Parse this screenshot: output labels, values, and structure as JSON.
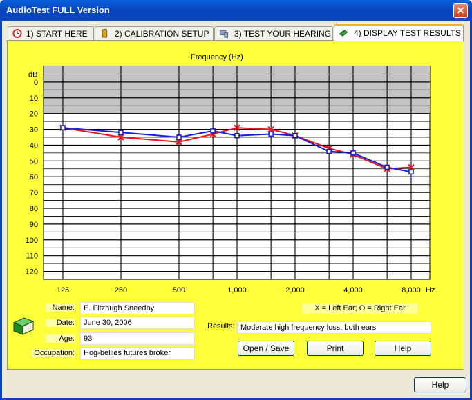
{
  "window": {
    "title": "AudioTest FULL Version",
    "close_label": "✕"
  },
  "tabs": [
    {
      "label": "1) START HERE",
      "icon": "clock-icon"
    },
    {
      "label": "2) CALIBRATION SETUP",
      "icon": "battery-icon"
    },
    {
      "label": "3) TEST YOUR HEARING",
      "icon": "computer-icon"
    },
    {
      "label": "4) DISPLAY TEST RESULTS",
      "icon": "book-icon",
      "active": true
    }
  ],
  "chart_data": {
    "type": "line",
    "title": "Frequency (Hz)",
    "y_unit_label": "dB",
    "x_unit_label": "Hz",
    "x_tick_labels": [
      "125",
      "250",
      "500",
      "1,000",
      "2,000",
      "4,000",
      "8,000"
    ],
    "x_ticks_hz": [
      125,
      250,
      500,
      1000,
      2000,
      4000,
      8000
    ],
    "gridline_frequencies_hz": [
      125,
      250,
      500,
      750,
      1000,
      1500,
      2000,
      3000,
      4000,
      6000,
      8000
    ],
    "y_tick_labels": [
      "0",
      "10",
      "20",
      "30",
      "40",
      "50",
      "60",
      "70",
      "80",
      "90",
      "100",
      "110",
      "120"
    ],
    "ylim": [
      -10,
      125
    ],
    "y_inverted": true,
    "shaded_range_db": [
      -10,
      20
    ],
    "series": [
      {
        "name": "Left Ear",
        "marker": "X",
        "color": "#e8161a",
        "x": [
          125,
          250,
          500,
          750,
          1000,
          1500,
          2000,
          3000,
          4000,
          6000,
          8000
        ],
        "y": [
          29,
          35,
          38,
          33,
          29,
          30,
          34,
          42,
          46,
          55,
          54
        ]
      },
      {
        "name": "Right Ear",
        "marker": "O",
        "color": "#1820d0",
        "x": [
          125,
          250,
          500,
          750,
          1000,
          1500,
          2000,
          3000,
          4000,
          6000,
          8000
        ],
        "y": [
          29,
          32,
          35,
          31,
          34,
          33,
          34,
          44,
          45,
          54,
          57
        ]
      }
    ]
  },
  "legend": {
    "text": "X = Left Ear;   O = Right Ear"
  },
  "patient": {
    "name_label": "Name:",
    "name_value": "E. Fitzhugh Sneedby",
    "date_label": "Date:",
    "date_value": "June 30, 2006",
    "age_label": "Age:",
    "age_value": "93",
    "occupation_label": "Occupation:",
    "occupation_value": "Hog-bellies futures broker"
  },
  "results": {
    "label": "Results:",
    "value": "Moderate high frequency loss, both ears"
  },
  "buttons": {
    "open_save": "Open / Save",
    "print": "Print",
    "help_panel": "Help",
    "help_bottom": "Help"
  }
}
